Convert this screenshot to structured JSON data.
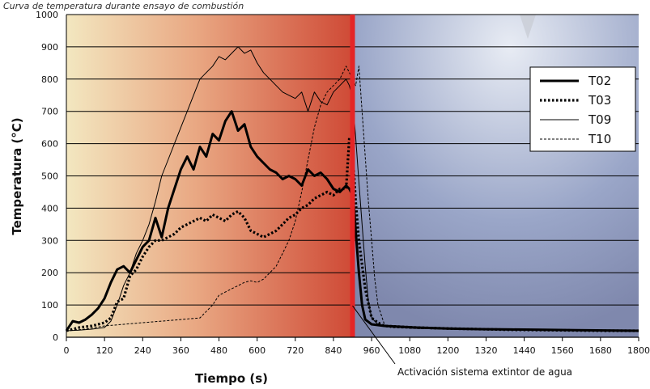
{
  "chart_data": {
    "type": "line",
    "title": "Curva de temperatura durante ensayo de combustión",
    "xlabel": "Tiempo (s)",
    "ylabel": "Temperatura (°C)",
    "xlim": [
      0,
      1800
    ],
    "ylim": [
      0,
      1000
    ],
    "x_ticks": [
      0,
      120,
      240,
      360,
      480,
      600,
      720,
      840,
      960,
      1080,
      1200,
      1320,
      1440,
      1560,
      1680,
      1800
    ],
    "y_ticks": [
      0,
      100,
      200,
      300,
      400,
      500,
      600,
      700,
      800,
      900,
      1000
    ],
    "grid": "horizontal",
    "legend_position": "top-right",
    "event": {
      "x": 900,
      "color": "#e42526",
      "label": "Activación sistema extintor de agua"
    },
    "background": {
      "fire_phase_colors": [
        "#f3e7c0",
        "#e9a883",
        "#cf4a36"
      ],
      "water_phase_color": "#9aa6c8"
    },
    "series": [
      {
        "name": "T02",
        "style": "thick-solid",
        "x": [
          0,
          20,
          40,
          60,
          80,
          100,
          120,
          140,
          160,
          180,
          200,
          220,
          240,
          260,
          280,
          300,
          320,
          340,
          360,
          380,
          400,
          420,
          440,
          460,
          480,
          500,
          520,
          540,
          560,
          580,
          600,
          620,
          640,
          660,
          680,
          700,
          720,
          740,
          760,
          780,
          800,
          820,
          840,
          860,
          880,
          890,
          900,
          905,
          910,
          920,
          930,
          940,
          960,
          1000,
          1100,
          1200,
          1300,
          1400,
          1500,
          1600,
          1700,
          1800
        ],
        "values": [
          20,
          50,
          45,
          55,
          70,
          90,
          120,
          170,
          210,
          220,
          200,
          240,
          280,
          300,
          370,
          310,
          400,
          460,
          520,
          560,
          520,
          590,
          560,
          630,
          610,
          670,
          700,
          640,
          660,
          590,
          560,
          540,
          520,
          510,
          490,
          500,
          490,
          470,
          520,
          500,
          510,
          490,
          460,
          450,
          470,
          460,
          440,
          400,
          330,
          200,
          100,
          55,
          40,
          35,
          30,
          27,
          25,
          24,
          23,
          22,
          21,
          20
        ]
      },
      {
        "name": "T03",
        "style": "thick-dotted",
        "x": [
          0,
          40,
          80,
          120,
          140,
          160,
          180,
          200,
          220,
          240,
          260,
          280,
          300,
          320,
          340,
          360,
          380,
          400,
          420,
          440,
          460,
          480,
          500,
          520,
          540,
          560,
          580,
          600,
          620,
          640,
          660,
          680,
          700,
          720,
          740,
          760,
          780,
          800,
          820,
          840,
          860,
          880,
          890,
          895,
          900,
          905,
          910,
          920,
          940,
          960,
          980,
          1000,
          1100,
          1200,
          1300,
          1400,
          1500,
          1600,
          1700,
          1800
        ],
        "values": [
          20,
          30,
          35,
          45,
          60,
          110,
          120,
          190,
          210,
          250,
          280,
          300,
          300,
          310,
          320,
          340,
          350,
          360,
          370,
          360,
          380,
          370,
          360,
          380,
          390,
          370,
          330,
          320,
          310,
          320,
          330,
          350,
          370,
          380,
          400,
          410,
          430,
          440,
          450,
          440,
          460,
          460,
          620,
          610,
          580,
          500,
          420,
          300,
          150,
          60,
          45,
          35,
          30,
          27,
          25,
          23,
          22,
          21,
          20,
          20
        ]
      },
      {
        "name": "T09",
        "style": "thin-solid",
        "x": [
          0,
          40,
          80,
          120,
          140,
          160,
          180,
          200,
          220,
          240,
          260,
          280,
          300,
          320,
          340,
          360,
          380,
          400,
          420,
          440,
          460,
          480,
          500,
          520,
          540,
          560,
          580,
          600,
          620,
          640,
          660,
          680,
          700,
          720,
          740,
          760,
          780,
          800,
          820,
          840,
          860,
          880,
          890,
          900,
          910,
          920,
          930,
          940,
          950,
          960,
          980,
          1000,
          1100,
          1200,
          1300,
          1400,
          1500,
          1600,
          1700,
          1800
        ],
        "values": [
          20,
          22,
          25,
          30,
          50,
          100,
          160,
          200,
          260,
          300,
          350,
          420,
          500,
          550,
          600,
          650,
          700,
          750,
          800,
          820,
          840,
          870,
          860,
          880,
          900,
          880,
          890,
          850,
          820,
          800,
          780,
          760,
          750,
          740,
          760,
          700,
          760,
          730,
          720,
          760,
          780,
          800,
          780,
          740,
          620,
          480,
          350,
          220,
          110,
          60,
          40,
          35,
          30,
          27,
          25,
          23,
          22,
          21,
          20,
          20
        ]
      },
      {
        "name": "T10",
        "style": "thin-dashed",
        "x": [
          0,
          60,
          120,
          180,
          240,
          300,
          360,
          420,
          460,
          480,
          500,
          520,
          540,
          560,
          580,
          600,
          620,
          640,
          660,
          680,
          700,
          720,
          740,
          760,
          780,
          800,
          820,
          840,
          860,
          880,
          890,
          900,
          910,
          920,
          930,
          940,
          950,
          960,
          970,
          980,
          1000,
          1020,
          1100,
          1200,
          1300,
          1400,
          1500,
          1600,
          1700,
          1800
        ],
        "values": [
          20,
          25,
          35,
          40,
          45,
          50,
          55,
          60,
          100,
          130,
          140,
          150,
          160,
          170,
          175,
          170,
          180,
          200,
          220,
          260,
          300,
          360,
          450,
          550,
          650,
          720,
          760,
          780,
          800,
          840,
          820,
          800,
          780,
          840,
          700,
          560,
          420,
          300,
          180,
          100,
          40,
          30,
          27,
          25,
          23,
          22,
          21,
          20,
          20,
          20
        ]
      }
    ]
  }
}
